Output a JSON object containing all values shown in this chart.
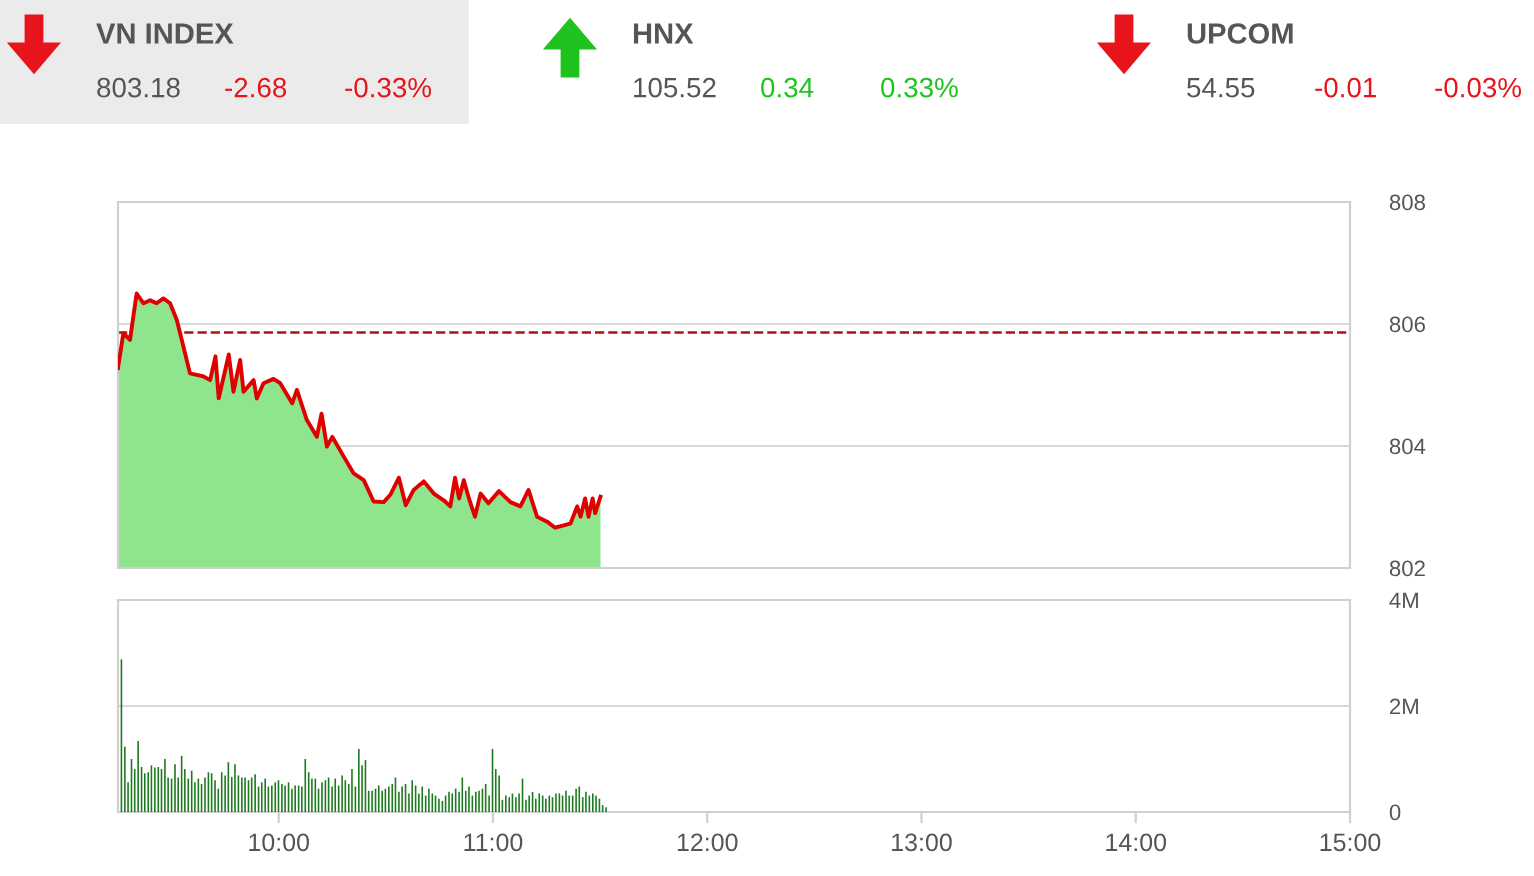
{
  "chart_data": [
    {
      "type": "other",
      "data_labels": true,
      "categories": [
        "VN INDEX",
        "HNX",
        "UPCOM"
      ],
      "colors": [
        "#e8141b",
        "#1fc21f",
        "#e8141b"
      ],
      "series": [
        {
          "values": [
            803.18,
            105.52,
            54.55
          ]
        },
        {
          "values": [
            -2.68,
            0.34,
            -0.01
          ]
        },
        {
          "values": [
            -0.33,
            0.33,
            -0.03
          ],
          "value_labels": [
            "-0.33%",
            "0.33%",
            "-0.03%"
          ]
        }
      ]
    },
    {
      "type": "area",
      "xlim": [
        9.25,
        15
      ],
      "ylim": [
        802,
        808
      ],
      "yticks": [
        802,
        804,
        806,
        808
      ],
      "grid": "y",
      "tick_labels": "y",
      "ref_lines": [
        {
          "axis": "y",
          "value": 805.86,
          "color": "#b01010",
          "line_style": "dashed"
        }
      ],
      "series": [
        {
          "type": "area",
          "color": "#8ee58e",
          "x": [
            9.25,
            9.275,
            9.306,
            9.337,
            9.369,
            9.4,
            9.43,
            9.462,
            9.493,
            9.524,
            9.54,
            9.586,
            9.649,
            9.68,
            9.705,
            9.72,
            9.767,
            9.789,
            9.82,
            9.836,
            9.883,
            9.898,
            9.929,
            9.976,
            10.007,
            10.063,
            10.085,
            10.131,
            10.178,
            10.2,
            10.225,
            10.25,
            10.303,
            10.35,
            10.397,
            10.443,
            10.49,
            10.521,
            10.561,
            10.593,
            10.63,
            10.677,
            10.724,
            10.77,
            10.801,
            10.823,
            10.842,
            10.864,
            10.888,
            10.916,
            10.942,
            10.979,
            11.028,
            11.082,
            11.128,
            11.166,
            11.206,
            11.253,
            11.29,
            11.331,
            11.362,
            11.393,
            11.409,
            11.43,
            11.446,
            11.465,
            11.477,
            11.502
          ],
          "values": [
            805.28,
            805.85,
            805.74,
            806.5,
            806.34,
            806.39,
            806.34,
            806.42,
            806.34,
            806.07,
            805.85,
            805.19,
            805.14,
            805.08,
            805.47,
            804.78,
            805.5,
            804.89,
            805.41,
            804.89,
            805.08,
            804.78,
            805.03,
            805.1,
            805.03,
            804.7,
            804.92,
            804.43,
            804.15,
            804.53,
            803.99,
            804.15,
            803.83,
            803.55,
            803.44,
            803.09,
            803.08,
            803.2,
            803.48,
            803.03,
            803.28,
            803.42,
            803.22,
            803.11,
            803.01,
            803.48,
            803.14,
            803.44,
            803.14,
            802.84,
            803.22,
            803.06,
            803.26,
            803.08,
            803.01,
            803.28,
            802.84,
            802.76,
            802.66,
            802.7,
            802.73,
            803.01,
            802.84,
            803.14,
            802.84,
            803.14,
            802.9,
            803.17
          ]
        },
        {
          "type": "line",
          "color": "#e00000",
          "x": [
            9.25,
            9.275,
            9.306,
            9.337,
            9.369,
            9.4,
            9.43,
            9.462,
            9.493,
            9.524,
            9.54,
            9.586,
            9.649,
            9.68,
            9.705,
            9.72,
            9.767,
            9.789,
            9.82,
            9.836,
            9.883,
            9.898,
            9.929,
            9.976,
            10.007,
            10.063,
            10.085,
            10.131,
            10.178,
            10.2,
            10.225,
            10.25,
            10.303,
            10.35,
            10.397,
            10.443,
            10.49,
            10.521,
            10.561,
            10.593,
            10.63,
            10.677,
            10.724,
            10.77,
            10.801,
            10.823,
            10.842,
            10.864,
            10.888,
            10.916,
            10.942,
            10.979,
            11.028,
            11.082,
            11.128,
            11.166,
            11.206,
            11.253,
            11.29,
            11.331,
            11.362,
            11.393,
            11.409,
            11.43,
            11.446,
            11.465,
            11.477,
            11.502
          ],
          "values": [
            805.28,
            805.85,
            805.74,
            806.5,
            806.34,
            806.39,
            806.34,
            806.42,
            806.34,
            806.07,
            805.85,
            805.19,
            805.14,
            805.08,
            805.47,
            804.78,
            805.5,
            804.89,
            805.41,
            804.89,
            805.08,
            804.78,
            805.03,
            805.1,
            805.03,
            804.7,
            804.92,
            804.43,
            804.15,
            804.53,
            803.99,
            804.15,
            803.83,
            803.55,
            803.44,
            803.09,
            803.08,
            803.2,
            803.48,
            803.03,
            803.28,
            803.42,
            803.22,
            803.11,
            803.01,
            803.48,
            803.14,
            803.44,
            803.14,
            802.84,
            803.22,
            803.06,
            803.26,
            803.08,
            803.01,
            803.28,
            802.84,
            802.76,
            802.66,
            802.7,
            802.73,
            803.01,
            802.84,
            803.14,
            802.84,
            803.14,
            802.9,
            803.17
          ]
        }
      ]
    },
    {
      "type": "bar",
      "xlim": [
        9.25,
        15
      ],
      "ylim": [
        0,
        4
      ],
      "grid": "y",
      "yticks": [
        {
          "value": 0,
          "label": "0"
        },
        {
          "value": 2,
          "label": "2M"
        },
        {
          "value": 4,
          "label": "4M"
        }
      ],
      "xticks": [
        {
          "value": 10,
          "label": "10:00"
        },
        {
          "value": 11,
          "label": "11:00"
        },
        {
          "value": 12,
          "label": "12:00"
        },
        {
          "value": 13,
          "label": "13:00"
        },
        {
          "value": 14,
          "label": "14:00"
        },
        {
          "value": 15,
          "label": "15:00"
        }
      ],
      "series": [
        {
          "color": "#1e7a1e",
          "x": [
            9.266,
            9.282,
            9.297,
            9.313,
            9.328,
            9.344,
            9.36,
            9.375,
            9.391,
            9.406,
            9.422,
            9.438,
            9.453,
            9.469,
            9.484,
            9.5,
            9.516,
            9.531,
            9.547,
            9.562,
            9.578,
            9.594,
            9.609,
            9.625,
            9.64,
            9.656,
            9.672,
            9.687,
            9.703,
            9.718,
            9.734,
            9.75,
            9.765,
            9.781,
            9.796,
            9.812,
            9.828,
            9.843,
            9.859,
            9.874,
            9.89,
            9.906,
            9.921,
            9.937,
            9.952,
            9.968,
            9.984,
            9.999,
            10.015,
            10.03,
            10.046,
            10.062,
            10.077,
            10.093,
            10.108,
            10.124,
            10.14,
            10.155,
            10.171,
            10.186,
            10.202,
            10.218,
            10.233,
            10.249,
            10.264,
            10.28,
            10.296,
            10.311,
            10.327,
            10.342,
            10.358,
            10.374,
            10.389,
            10.405,
            10.42,
            10.436,
            10.452,
            10.467,
            10.483,
            10.498,
            10.514,
            10.53,
            10.545,
            10.561,
            10.576,
            10.592,
            10.608,
            10.623,
            10.639,
            10.654,
            10.67,
            10.686,
            10.701,
            10.717,
            10.732,
            10.748,
            10.764,
            10.779,
            10.795,
            10.81,
            10.826,
            10.842,
            10.857,
            10.873,
            10.888,
            10.904,
            10.92,
            10.935,
            10.951,
            10.966,
            10.982,
            10.998,
            11.013,
            11.029,
            11.044,
            11.06,
            11.076,
            11.091,
            11.107,
            11.122,
            11.138,
            11.154,
            11.169,
            11.185,
            11.2,
            11.216,
            11.232,
            11.247,
            11.263,
            11.278,
            11.294,
            11.31,
            11.325,
            11.341,
            11.356,
            11.372,
            11.388,
            11.403,
            11.419,
            11.434,
            11.45,
            11.466,
            11.481,
            11.497,
            11.512,
            11.528
          ],
          "values": [
            2.88,
            1.23,
            0.56,
            1.0,
            0.81,
            1.34,
            0.85,
            0.73,
            0.75,
            0.88,
            0.84,
            0.85,
            0.81,
            1.0,
            0.65,
            0.63,
            0.9,
            0.65,
            1.06,
            0.81,
            0.63,
            0.78,
            0.56,
            0.63,
            0.53,
            0.65,
            0.75,
            0.73,
            0.6,
            0.44,
            0.75,
            0.69,
            0.94,
            0.66,
            0.9,
            0.69,
            0.65,
            0.65,
            0.6,
            0.65,
            0.71,
            0.48,
            0.56,
            0.63,
            0.48,
            0.5,
            0.56,
            0.6,
            0.53,
            0.5,
            0.56,
            0.44,
            0.5,
            0.5,
            0.48,
            1.0,
            0.75,
            0.63,
            0.63,
            0.44,
            0.56,
            0.6,
            0.65,
            0.48,
            0.63,
            0.5,
            0.69,
            0.6,
            0.53,
            0.81,
            0.48,
            1.19,
            0.88,
            0.98,
            0.4,
            0.4,
            0.44,
            0.5,
            0.4,
            0.44,
            0.48,
            0.53,
            0.65,
            0.38,
            0.48,
            0.53,
            0.35,
            0.6,
            0.5,
            0.35,
            0.48,
            0.31,
            0.44,
            0.35,
            0.31,
            0.25,
            0.21,
            0.31,
            0.38,
            0.35,
            0.44,
            0.38,
            0.65,
            0.4,
            0.48,
            0.31,
            0.38,
            0.4,
            0.44,
            0.53,
            0.31,
            1.19,
            0.81,
            0.69,
            0.23,
            0.31,
            0.28,
            0.35,
            0.28,
            0.35,
            0.63,
            0.23,
            0.31,
            0.38,
            0.25,
            0.35,
            0.31,
            0.25,
            0.31,
            0.28,
            0.35,
            0.35,
            0.31,
            0.4,
            0.31,
            0.31,
            0.44,
            0.48,
            0.28,
            0.38,
            0.31,
            0.35,
            0.31,
            0.25,
            0.13,
            0.09
          ]
        }
      ]
    }
  ]
}
